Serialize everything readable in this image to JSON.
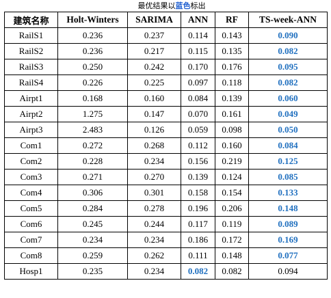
{
  "caption": {
    "prefix": "最优结果以",
    "highlight": "蓝色",
    "suffix": "标出"
  },
  "colors": {
    "highlight": "#1f6fbf"
  },
  "table": {
    "headers": [
      "建筑名称",
      "Holt-Winters",
      "SARIMA",
      "ANN",
      "RF",
      "TS-week-ANN"
    ],
    "rows": [
      {
        "name": "RailS1",
        "values": [
          "0.236",
          "0.237",
          "0.114",
          "0.143",
          "0.090"
        ],
        "best": 4
      },
      {
        "name": "RailS2",
        "values": [
          "0.236",
          "0.217",
          "0.115",
          "0.135",
          "0.082"
        ],
        "best": 4
      },
      {
        "name": "RailS3",
        "values": [
          "0.250",
          "0.242",
          "0.170",
          "0.176",
          "0.095"
        ],
        "best": 4
      },
      {
        "name": "RailS4",
        "values": [
          "0.226",
          "0.225",
          "0.097",
          "0.118",
          "0.082"
        ],
        "best": 4
      },
      {
        "name": "Airpt1",
        "values": [
          "0.168",
          "0.160",
          "0.084",
          "0.139",
          "0.060"
        ],
        "best": 4
      },
      {
        "name": "Airpt2",
        "values": [
          "1.275",
          "0.147",
          "0.070",
          "0.161",
          "0.049"
        ],
        "best": 4
      },
      {
        "name": "Airpt3",
        "values": [
          "2.483",
          "0.126",
          "0.059",
          "0.098",
          "0.050"
        ],
        "best": 4
      },
      {
        "name": "Com1",
        "values": [
          "0.272",
          "0.268",
          "0.112",
          "0.160",
          "0.084"
        ],
        "best": 4
      },
      {
        "name": "Com2",
        "values": [
          "0.228",
          "0.234",
          "0.156",
          "0.219",
          "0.125"
        ],
        "best": 4
      },
      {
        "name": "Com3",
        "values": [
          "0.271",
          "0.270",
          "0.139",
          "0.124",
          "0.085"
        ],
        "best": 4
      },
      {
        "name": "Com4",
        "values": [
          "0.306",
          "0.301",
          "0.158",
          "0.154",
          "0.133"
        ],
        "best": 4
      },
      {
        "name": "Com5",
        "values": [
          "0.284",
          "0.278",
          "0.196",
          "0.206",
          "0.148"
        ],
        "best": 4
      },
      {
        "name": "Com6",
        "values": [
          "0.245",
          "0.244",
          "0.117",
          "0.119",
          "0.089"
        ],
        "best": 4
      },
      {
        "name": "Com7",
        "values": [
          "0.234",
          "0.234",
          "0.186",
          "0.172",
          "0.169"
        ],
        "best": 4
      },
      {
        "name": "Com8",
        "values": [
          "0.259",
          "0.262",
          "0.111",
          "0.148",
          "0.077"
        ],
        "best": 4
      },
      {
        "name": "Hosp1",
        "values": [
          "0.235",
          "0.234",
          "0.082",
          "0.082",
          "0.094"
        ],
        "best": 2
      }
    ]
  }
}
